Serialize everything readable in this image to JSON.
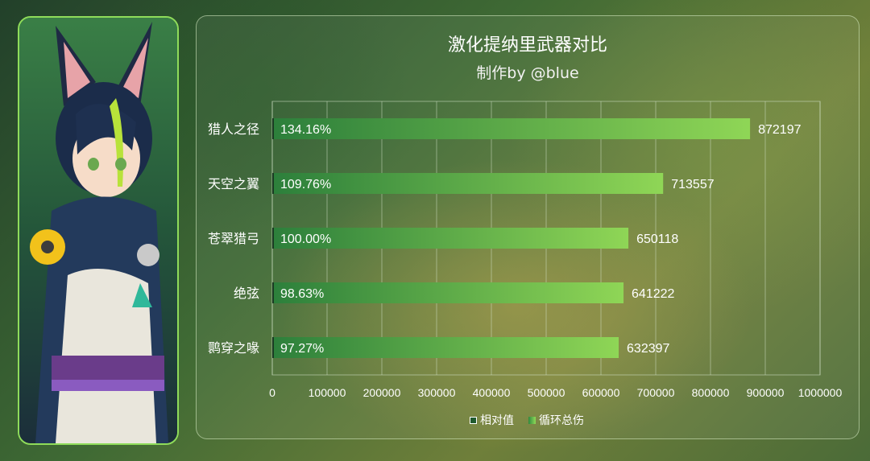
{
  "chart_data": {
    "type": "bar",
    "orientation": "horizontal",
    "title": "激化提纳里武器对比",
    "subtitle": "制作by @blue",
    "categories": [
      "猎人之径",
      "天空之翼",
      "苍翠猎弓",
      "绝弦",
      "鹮穿之喙"
    ],
    "series": [
      {
        "name": "循环总伤",
        "values": [
          872197,
          713557,
          650118,
          641222,
          632397
        ]
      },
      {
        "name": "相对值",
        "values": [
          "134.16%",
          "109.76%",
          "100.00%",
          "98.63%",
          "97.27%"
        ]
      }
    ],
    "xlim": [
      0,
      1000000
    ],
    "xticks": [
      "0",
      "100000",
      "200000",
      "300000",
      "400000",
      "500000",
      "600000",
      "700000",
      "800000",
      "900000",
      "1000000"
    ],
    "grid": true,
    "legend_position": "bottom",
    "colors": {
      "bar_start": "#2c7f3b",
      "bar_end": "#8fd656",
      "text": "#ffffff",
      "grid": "#c8d8c0"
    }
  },
  "legend": {
    "items": [
      "相对值",
      "循环总伤"
    ]
  }
}
